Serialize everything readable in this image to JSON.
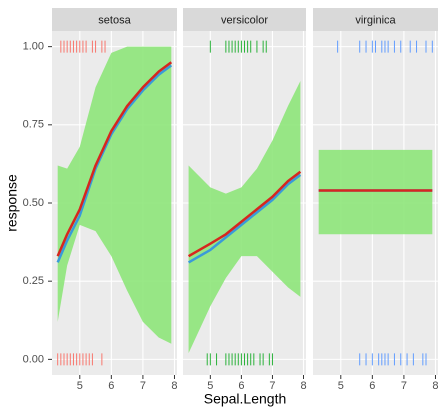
{
  "chart_data": {
    "type": "line",
    "x_label": "Sepal.Length",
    "y_label": "response",
    "xlim": [
      4.12,
      8.08
    ],
    "xticks": [
      5,
      6,
      7,
      8
    ],
    "ylim": [
      -0.05,
      1.05
    ],
    "yticks": [
      {
        "value": 0,
        "label": "0.00"
      },
      {
        "value": 0.25,
        "label": "0.25"
      },
      {
        "value": 0.5,
        "label": "0.50"
      },
      {
        "value": 0.75,
        "label": "0.75"
      },
      {
        "value": 1,
        "label": "1.00"
      }
    ],
    "grid": true,
    "ribbon_color": "#8ee57a",
    "facets": [
      {
        "name": "setosa",
        "rug_color": "#f8766d",
        "x": [
          4.3,
          4.6,
          5.0,
          5.5,
          6.0,
          6.5,
          7.0,
          7.5,
          7.9
        ],
        "ribbon_lower": [
          0.12,
          0.3,
          0.43,
          0.41,
          0.33,
          0.22,
          0.12,
          0.07,
          0.05
        ],
        "ribbon_upper": [
          0.62,
          0.61,
          0.68,
          0.87,
          0.98,
          1.0,
          1.0,
          1.0,
          1.0
        ],
        "series": [
          {
            "color": "#3a9ad9",
            "values": [
              0.31,
              0.38,
              0.46,
              0.61,
              0.72,
              0.8,
              0.86,
              0.91,
              0.94
            ]
          },
          {
            "color": "#d7261e",
            "values": [
              0.33,
              0.4,
              0.48,
              0.62,
              0.73,
              0.81,
              0.87,
              0.92,
              0.95
            ]
          }
        ],
        "rugs": [
          {
            "y": 1,
            "x": [
              4.4,
              4.5,
              4.6,
              4.7,
              4.8,
              4.9,
              5.0,
              5.1,
              5.2,
              5.4,
              5.5,
              5.7,
              5.8
            ]
          },
          {
            "y": 0,
            "x": [
              4.3,
              4.4,
              4.5,
              4.6,
              4.7,
              4.8,
              4.9,
              5.0,
              5.1,
              5.2,
              5.3,
              5.4,
              5.7
            ]
          }
        ]
      },
      {
        "name": "versicolor",
        "rug_color": "#2ab23a",
        "x": [
          4.3,
          5.0,
          5.5,
          6.0,
          6.5,
          7.0,
          7.5,
          7.9
        ],
        "ribbon_lower": [
          0.02,
          0.17,
          0.26,
          0.33,
          0.33,
          0.28,
          0.23,
          0.2
        ],
        "ribbon_upper": [
          0.62,
          0.55,
          0.53,
          0.55,
          0.61,
          0.7,
          0.81,
          0.89
        ],
        "series": [
          {
            "color": "#3a9ad9",
            "values": [
              0.31,
              0.35,
              0.39,
              0.43,
              0.47,
              0.51,
              0.56,
              0.59
            ]
          },
          {
            "color": "#d7261e",
            "values": [
              0.33,
              0.37,
              0.4,
              0.44,
              0.48,
              0.52,
              0.57,
              0.6
            ]
          }
        ],
        "rugs": [
          {
            "y": 1,
            "x": [
              5.0,
              5.5,
              5.6,
              5.7,
              5.8,
              5.9,
              6.0,
              6.1,
              6.2,
              6.3,
              6.5,
              6.7,
              6.8
            ]
          },
          {
            "y": 0,
            "x": [
              4.9,
              5.0,
              5.2,
              5.5,
              5.6,
              5.7,
              5.8,
              5.9,
              6.0,
              6.1,
              6.2,
              6.3,
              6.4,
              6.6,
              6.7,
              6.9,
              7.0
            ]
          }
        ]
      },
      {
        "name": "virginica",
        "rug_color": "#619cff",
        "x": [
          4.3,
          7.9
        ],
        "ribbon_lower": [
          0.4,
          0.4
        ],
        "ribbon_upper": [
          0.67,
          0.67
        ],
        "series": [
          {
            "color": "#3a9ad9",
            "values": [
              0.54,
              0.54
            ]
          },
          {
            "color": "#d7261e",
            "values": [
              0.54,
              0.54
            ]
          }
        ],
        "rugs": [
          {
            "y": 1,
            "x": [
              4.9,
              5.6,
              5.8,
              6.0,
              6.1,
              6.3,
              6.4,
              6.5,
              6.7,
              6.9,
              7.2,
              7.4,
              7.7,
              7.9
            ]
          },
          {
            "y": 0,
            "x": [
              5.6,
              5.8,
              6.0,
              6.2,
              6.3,
              6.4,
              6.5,
              6.7,
              6.9,
              7.1,
              7.3,
              7.6,
              7.7
            ]
          }
        ]
      }
    ]
  }
}
